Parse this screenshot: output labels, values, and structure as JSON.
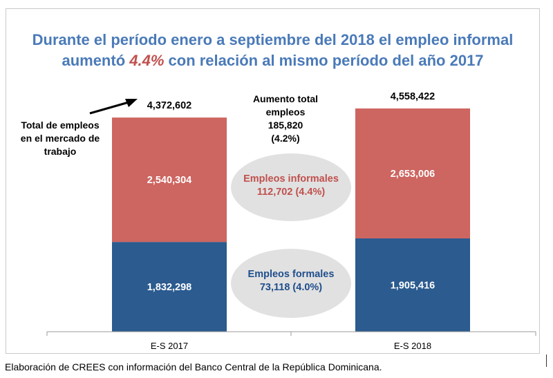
{
  "title": {
    "line1": "Durante el período enero a septiembre del 2018 el empleo informal",
    "line2_pre": "aumentó ",
    "line2_highlight": "4.4%",
    "line2_post": " con relación al mismo período del año 2017"
  },
  "annotations": {
    "total_label_lines": [
      "Total de empleos",
      "en el mercado de",
      "trabajo"
    ],
    "aumento_lines": [
      "Aumento total",
      "empleos",
      "185,820",
      "(4.2%)"
    ],
    "informales_lines": [
      "Empleos informales",
      "112,702 (4.4%)"
    ],
    "formales_lines": [
      "Empleos formales",
      "73,118 (4.0%)"
    ]
  },
  "source": "Elaboración de CREES con información del Banco Central de la República Dominicana.",
  "colors": {
    "formal": "#2b5b8f",
    "informal": "#cd6560",
    "title": "#4a7ab8",
    "highlight": "#c0504d",
    "ellipse": "#e1e1e1",
    "informal_text": "#c0504d",
    "formal_text": "#1f4e8c"
  },
  "chart_data": {
    "type": "bar",
    "stacked": true,
    "categories": [
      "E-S 2017",
      "E-S 2018"
    ],
    "series": [
      {
        "name": "Empleos formales",
        "values": [
          1832298,
          1905416
        ]
      },
      {
        "name": "Empleos informales",
        "values": [
          2540304,
          2653006
        ]
      }
    ],
    "value_labels": {
      "formal": [
        "1,832,298",
        "1,905,416"
      ],
      "informal": [
        "2,540,304",
        "2,653,006"
      ]
    },
    "totals": [
      4372602,
      4558422
    ],
    "total_labels": [
      "4,372,602",
      "4,558,422"
    ],
    "ylim": [
      0,
      4600000
    ]
  }
}
